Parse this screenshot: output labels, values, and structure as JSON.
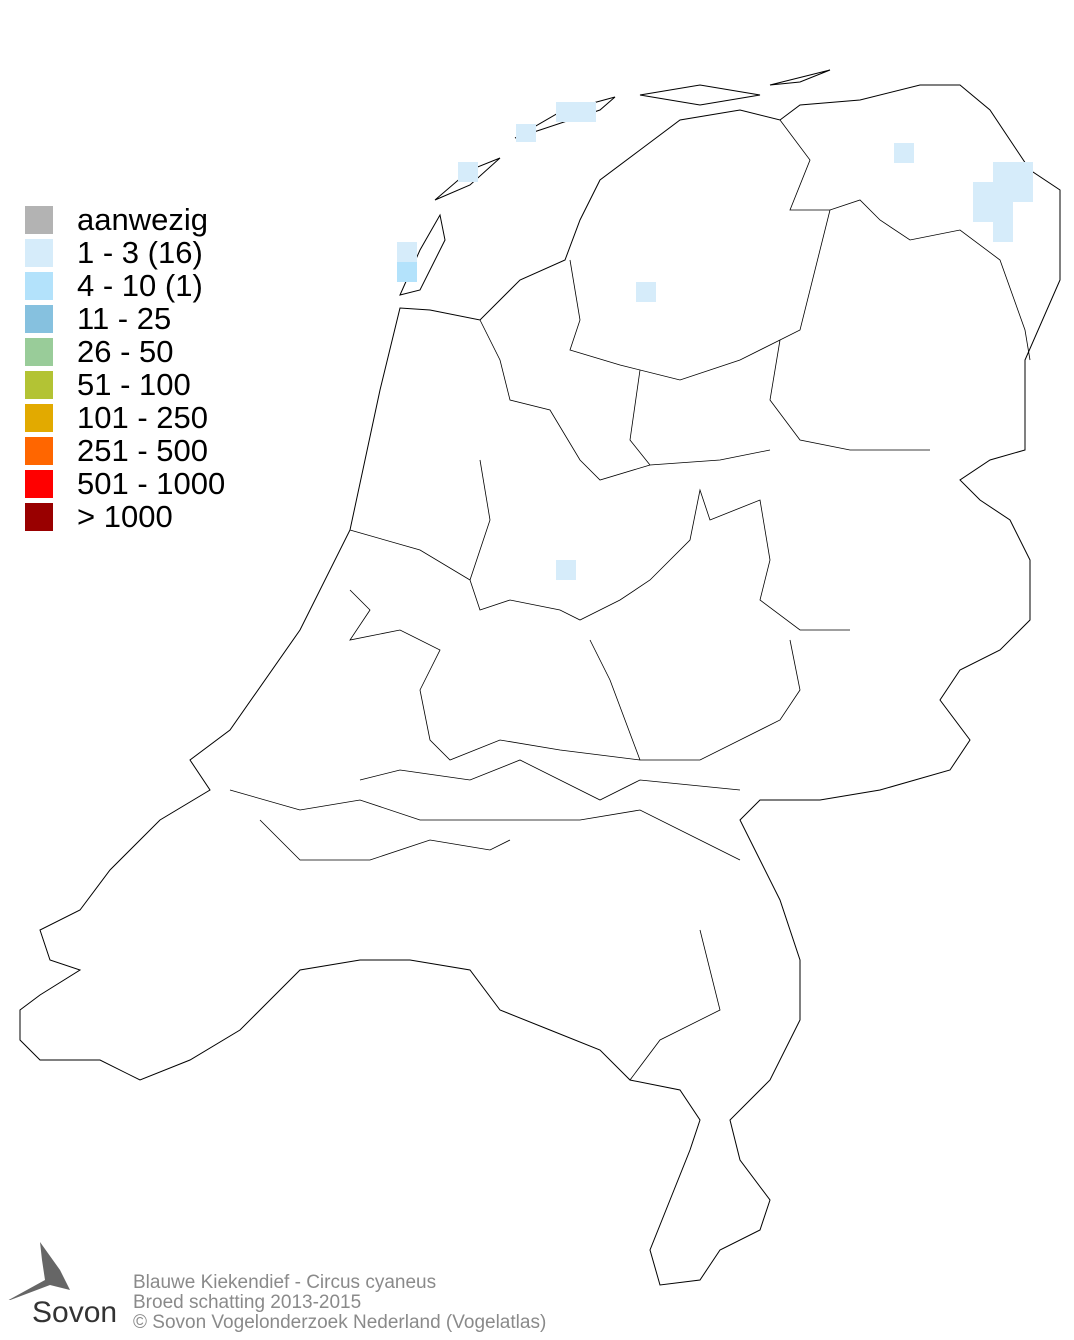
{
  "legend": {
    "items": [
      {
        "label": "aanwezig",
        "color": "#b3b3b3"
      },
      {
        "label": "1 - 3 (16)",
        "color": "#d6ecfa"
      },
      {
        "label": "4 - 10 (1)",
        "color": "#b3e2fb"
      },
      {
        "label": "11 - 25",
        "color": "#86c1df"
      },
      {
        "label": "26 - 50",
        "color": "#99cc99"
      },
      {
        "label": "51 - 100",
        "color": "#b3c334"
      },
      {
        "label": "101 - 250",
        "color": "#e2aa00"
      },
      {
        "label": "251 - 500",
        "color": "#ff6600"
      },
      {
        "label": "501 - 1000",
        "color": "#ff0000"
      },
      {
        "label": "> 1000",
        "color": "#990000"
      }
    ]
  },
  "footer": {
    "line1": "Blauwe Kiekendief - Circus cyaneus",
    "line2": "Broed schatting 2013-2015",
    "line3": "© Sovon Vogelonderzoek Nederland (Vogelatlas)"
  },
  "logo": {
    "text": "Sovon"
  }
}
